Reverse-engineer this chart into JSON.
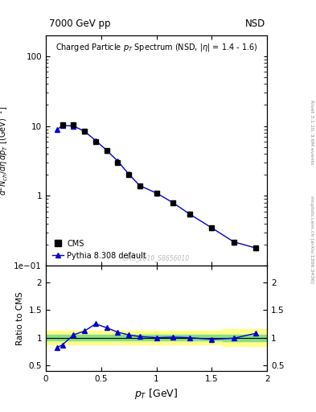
{
  "title_left": "7000 GeV pp",
  "title_right": "NSD",
  "main_title": "Charged Particle $p_T$ Spectrum (NSD, $|\\eta|$ = 1.4 - 1.6)",
  "ylabel_main": "$d^2N_{ch}/d\\eta\\, dp_T\\, [(GeV)^{-1}]$",
  "ylabel_ratio": "Ratio to CMS",
  "xlabel": "$p_T$ [GeV]",
  "watermark": "CMS_2010_S8656010",
  "right_label": "Rivet 3.1.10, 3.6M events",
  "arxiv_label": "[arXiv:1306.3436]",
  "mcplots_label": "mcplots.cern.ch",
  "cms_pt": [
    0.15,
    0.25,
    0.35,
    0.45,
    0.55,
    0.65,
    0.75,
    0.85,
    1.0,
    1.15,
    1.3,
    1.5,
    1.7,
    1.9
  ],
  "cms_y": [
    10.5,
    10.5,
    8.5,
    6.0,
    4.5,
    3.0,
    2.0,
    1.4,
    1.1,
    0.8,
    0.55,
    0.35,
    0.22,
    0.18
  ],
  "py_pt": [
    0.1,
    0.15,
    0.25,
    0.35,
    0.45,
    0.55,
    0.65,
    0.75,
    0.85,
    1.0,
    1.15,
    1.3,
    1.5,
    1.7,
    1.9
  ],
  "py_y": [
    8.8,
    10.2,
    10.0,
    8.4,
    6.2,
    4.5,
    3.15,
    2.05,
    1.4,
    1.1,
    0.8,
    0.55,
    0.35,
    0.22,
    0.18
  ],
  "ratio_pt": [
    0.1,
    0.15,
    0.25,
    0.35,
    0.45,
    0.55,
    0.65,
    0.75,
    0.85,
    1.0,
    1.15,
    1.3,
    1.5,
    1.7,
    1.9
  ],
  "ratio_y": [
    0.82,
    0.87,
    1.05,
    1.12,
    1.25,
    1.18,
    1.1,
    1.05,
    1.02,
    1.0,
    1.01,
    1.0,
    0.97,
    0.99,
    1.08
  ],
  "yellow_band_x1": 0.0,
  "yellow_band_x2": 1.6,
  "yellow_band_lo1": 0.88,
  "yellow_band_hi1": 1.12,
  "yellow_band2_x1": 1.6,
  "yellow_band2_x2": 2.0,
  "yellow_band2_lo": 0.85,
  "yellow_band2_hi": 1.15,
  "green_band_x1": 0.0,
  "green_band_x2": 1.6,
  "green_band_lo1": 0.95,
  "green_band_hi1": 1.05,
  "green_band2_x1": 1.6,
  "green_band2_x2": 2.0,
  "green_band2_lo": 0.94,
  "green_band2_hi": 1.06,
  "xlim": [
    0.0,
    2.0
  ],
  "ylim_main": [
    0.1,
    200
  ],
  "ylim_ratio": [
    0.4,
    2.3
  ],
  "cms_color": "black",
  "py_color": "#0000cc"
}
